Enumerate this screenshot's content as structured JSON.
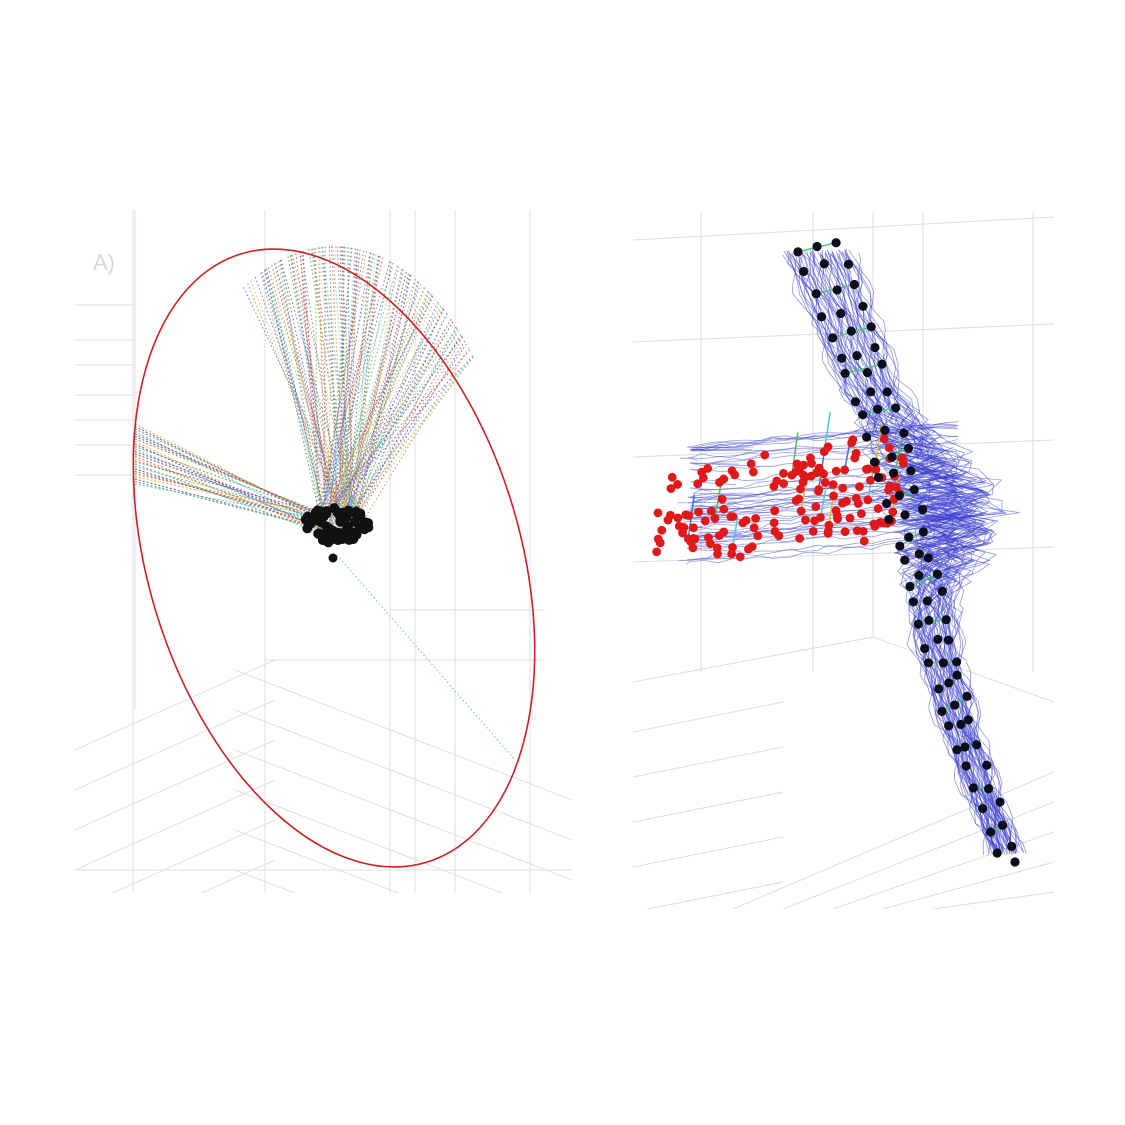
{
  "figure": {
    "left_panel": {
      "label": "A)",
      "boundary_color": "#cc2222",
      "trajectory_colors": [
        "#3a78c4",
        "#e07a2a",
        "#d9b84a",
        "#8c4fb8",
        "#5bb56a",
        "#55c7d6",
        "#c04a4a"
      ],
      "endpoint_color": "#111111",
      "grid_color": "#e2dbe8"
    },
    "right_panel": {
      "label": "",
      "trajectory_color": "#3a3fd0",
      "source_marker_color": "#e01818",
      "target_marker_color": "#0d0d1a",
      "link_color": "#3ccf6a",
      "stem_colors": [
        "#d9b84a",
        "#55c7d6",
        "#5bb56a",
        "#3a78c4"
      ],
      "grid_color": "#dcdcdc"
    }
  }
}
